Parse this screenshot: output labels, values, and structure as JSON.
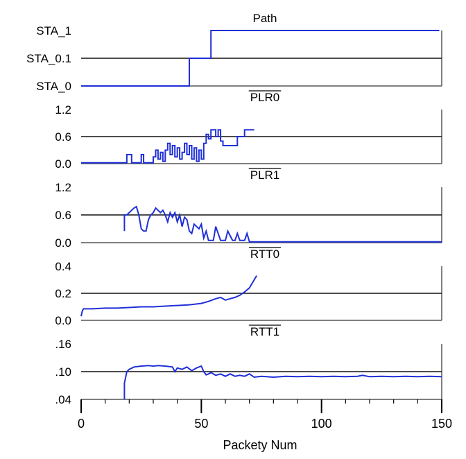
{
  "figure": {
    "xlabel": "Packety Num",
    "xticks": [
      "0",
      "50",
      "100",
      "150"
    ],
    "xlim": [
      0,
      150
    ]
  },
  "chart_data": [
    {
      "type": "line",
      "title": "Path",
      "ytick_labels": [
        "STA_1",
        "STA_0.1",
        "STA_0"
      ],
      "ytick_values": [
        2,
        1,
        0
      ],
      "ylim": [
        0,
        2
      ],
      "gridline_y": 1,
      "grid": false,
      "color": "#1f2fd8",
      "x": [
        0,
        45,
        45,
        54,
        54,
        149
      ],
      "y": [
        0,
        0,
        1,
        1,
        2,
        2
      ]
    },
    {
      "type": "line",
      "title": "PLR0",
      "title_overline": true,
      "ytick_labels": [
        "1.2",
        "0.6",
        "0.0"
      ],
      "ytick_values": [
        1.2,
        0.6,
        0.0
      ],
      "ylim": [
        0,
        1.2
      ],
      "gridline_y": 0.6,
      "grid": false,
      "color": "#1f2fd8",
      "x": [
        0,
        19,
        19,
        21,
        21,
        25,
        25,
        26,
        26,
        30,
        30,
        31,
        31,
        32,
        32,
        33,
        33,
        34,
        34,
        35,
        35,
        36,
        36,
        37,
        37,
        38,
        38,
        39,
        39,
        40,
        40,
        41,
        41,
        42,
        42,
        43,
        43,
        44,
        44,
        45,
        45,
        46,
        46,
        47,
        47,
        48,
        48,
        49,
        49,
        50,
        50,
        51,
        51,
        52,
        52,
        53,
        53,
        54,
        54,
        56,
        56,
        57,
        57,
        58,
        58,
        59,
        59,
        60,
        60,
        65,
        65,
        68,
        68,
        72
      ],
      "y": [
        0.02,
        0.02,
        0.2,
        0.2,
        0.02,
        0.02,
        0.2,
        0.2,
        0.02,
        0.02,
        0.15,
        0.15,
        0.3,
        0.3,
        0.1,
        0.1,
        0.25,
        0.25,
        0.05,
        0.05,
        0.3,
        0.3,
        0.45,
        0.45,
        0.2,
        0.2,
        0.4,
        0.4,
        0.15,
        0.15,
        0.35,
        0.35,
        0.1,
        0.1,
        0.25,
        0.25,
        0.45,
        0.45,
        0.2,
        0.2,
        0.4,
        0.4,
        0.1,
        0.1,
        0.35,
        0.35,
        0.05,
        0.05,
        0.3,
        0.3,
        0.1,
        0.1,
        0.45,
        0.45,
        0.65,
        0.65,
        0.55,
        0.55,
        0.75,
        0.75,
        0.6,
        0.6,
        0.75,
        0.75,
        0.5,
        0.5,
        0.4,
        0.4,
        0.4,
        0.4,
        0.6,
        0.6,
        0.75,
        0.75
      ]
    },
    {
      "type": "line",
      "title": "PLR1",
      "title_overline": true,
      "ytick_labels": [
        "1.2",
        "0.6",
        "0.0"
      ],
      "ytick_values": [
        1.2,
        0.6,
        0.0
      ],
      "ylim": [
        0,
        1.2
      ],
      "gridline_y": 0.6,
      "grid": false,
      "color": "#1f2fd8",
      "x": [
        18,
        18,
        19,
        20,
        21,
        22,
        23,
        24,
        25,
        26,
        27,
        28,
        29,
        30,
        31,
        32,
        33,
        34,
        35,
        36,
        37,
        38,
        39,
        40,
        41,
        42,
        43,
        44,
        45,
        46,
        47,
        48,
        49,
        50,
        51,
        52,
        53,
        54,
        55,
        56,
        57,
        58,
        59,
        60,
        61,
        62,
        63,
        64,
        65,
        66,
        67,
        68,
        69,
        70,
        71,
        72,
        150
      ],
      "y": [
        0.25,
        0.6,
        0.6,
        0.65,
        0.7,
        0.75,
        0.78,
        0.6,
        0.3,
        0.25,
        0.25,
        0.5,
        0.6,
        0.65,
        0.75,
        0.7,
        0.65,
        0.7,
        0.6,
        0.45,
        0.65,
        0.55,
        0.65,
        0.45,
        0.6,
        0.35,
        0.55,
        0.5,
        0.25,
        0.2,
        0.4,
        0.35,
        0.3,
        0.4,
        0.1,
        0.25,
        0.05,
        0.05,
        0.05,
        0.35,
        0.2,
        0.05,
        0.05,
        0.05,
        0.25,
        0.15,
        0.05,
        0.05,
        0.2,
        0.05,
        0.05,
        0.05,
        0.2,
        0.02,
        0.02,
        0.02,
        0.02
      ]
    },
    {
      "type": "line",
      "title": "RTT0",
      "title_overline": true,
      "ytick_labels": [
        "0.4",
        "0.2",
        "0.0"
      ],
      "ytick_values": [
        0.4,
        0.2,
        0.0
      ],
      "ylim": [
        0,
        0.4
      ],
      "gridline_y": 0.2,
      "grid": false,
      "color": "#1f2fd8",
      "x": [
        0,
        0.5,
        1,
        5,
        10,
        15,
        20,
        25,
        30,
        35,
        40,
        45,
        50,
        53,
        56,
        58,
        60,
        62,
        64,
        66,
        68,
        70,
        71,
        72,
        73
      ],
      "y": [
        0.03,
        0.07,
        0.085,
        0.085,
        0.09,
        0.09,
        0.095,
        0.1,
        0.1,
        0.105,
        0.11,
        0.115,
        0.125,
        0.14,
        0.16,
        0.17,
        0.15,
        0.16,
        0.17,
        0.185,
        0.21,
        0.24,
        0.27,
        0.3,
        0.33
      ]
    },
    {
      "type": "line",
      "title": "RTT1",
      "title_overline": true,
      "ytick_labels": [
        ".16",
        ".10",
        ".04"
      ],
      "ytick_values": [
        0.16,
        0.1,
        0.04
      ],
      "ylim": [
        0.04,
        0.16
      ],
      "gridline_y": 0.1,
      "grid": false,
      "color": "#1f2fd8",
      "x": [
        18,
        18,
        19,
        20,
        22,
        25,
        28,
        30,
        32,
        35,
        38,
        39,
        40,
        42,
        44,
        46,
        48,
        50,
        51,
        52,
        53,
        54,
        56,
        58,
        60,
        62,
        64,
        66,
        68,
        70,
        72,
        75,
        80,
        85,
        90,
        95,
        100,
        105,
        110,
        115,
        117,
        120,
        125,
        130,
        135,
        140,
        145,
        150
      ],
      "y": [
        0.04,
        0.075,
        0.1,
        0.105,
        0.11,
        0.112,
        0.113,
        0.112,
        0.113,
        0.112,
        0.11,
        0.1,
        0.108,
        0.105,
        0.11,
        0.102,
        0.108,
        0.112,
        0.1,
        0.093,
        0.095,
        0.098,
        0.092,
        0.095,
        0.09,
        0.095,
        0.09,
        0.092,
        0.09,
        0.095,
        0.088,
        0.09,
        0.088,
        0.09,
        0.089,
        0.09,
        0.089,
        0.09,
        0.089,
        0.09,
        0.092,
        0.089,
        0.09,
        0.089,
        0.09,
        0.089,
        0.09,
        0.089
      ]
    }
  ]
}
